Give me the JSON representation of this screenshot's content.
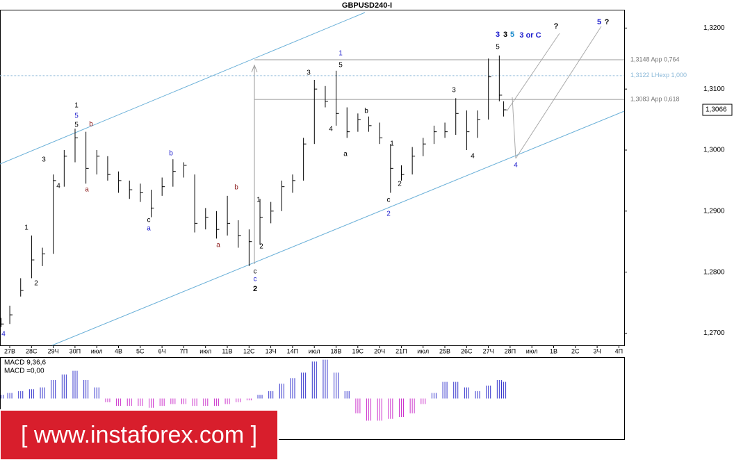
{
  "chart_data": {
    "type": "ohlc",
    "title": "GBPUSD240-I",
    "x_labels": [
      "27В",
      "28С",
      "29Ч",
      "30П",
      "июл",
      "4В",
      "5С",
      "6Ч",
      "7П",
      "июл",
      "11В",
      "12С",
      "13Ч",
      "14П",
      "июл",
      "18В",
      "19С",
      "20Ч",
      "21П",
      "июл",
      "25В",
      "26С",
      "27Ч",
      "28П",
      "июл",
      "1В",
      "2С",
      "3Ч",
      "4П"
    ],
    "xlim": [
      -0.45,
      28.24
    ],
    "x": [
      -0.4,
      0,
      0.5,
      1,
      1.5,
      2,
      2.5,
      3,
      3.5,
      4,
      4.5,
      5,
      5.5,
      6,
      6.5,
      7,
      7.5,
      8,
      8.5,
      9,
      9.5,
      10,
      10.5,
      11,
      11.5,
      12,
      12.5,
      13,
      13.5,
      14,
      14.5,
      15,
      15.5,
      16,
      16.5,
      17,
      17.5,
      18,
      18.5,
      19,
      19.5,
      20,
      20.5,
      21,
      21.5,
      22,
      22.5,
      22.7
    ],
    "high": [
      1.2725,
      1.2745,
      1.279,
      1.286,
      1.284,
      1.296,
      1.3,
      1.3035,
      1.303,
      1.3,
      1.299,
      1.2965,
      1.295,
      1.2945,
      1.2935,
      1.2955,
      1.2985,
      1.298,
      1.296,
      1.2905,
      1.29,
      1.2925,
      1.2885,
      1.287,
      1.292,
      1.2915,
      1.295,
      1.296,
      1.302,
      1.3115,
      1.3105,
      1.313,
      1.307,
      1.306,
      1.3055,
      1.3045,
      1.301,
      1.2975,
      1.3005,
      1.302,
      1.304,
      1.3045,
      1.3085,
      1.3065,
      1.3065,
      1.315,
      1.3155,
      1.308
    ],
    "low": [
      1.271,
      1.2715,
      1.276,
      1.279,
      1.281,
      1.283,
      1.294,
      1.298,
      1.2945,
      1.296,
      1.295,
      1.293,
      1.292,
      1.2915,
      1.289,
      1.2925,
      1.294,
      1.2955,
      1.2865,
      1.287,
      1.2855,
      1.286,
      1.284,
      1.281,
      1.2845,
      1.288,
      1.29,
      1.293,
      1.295,
      1.301,
      1.307,
      1.304,
      1.302,
      1.303,
      1.303,
      1.301,
      1.293,
      1.295,
      1.296,
      1.299,
      1.301,
      1.302,
      1.3025,
      1.3,
      1.302,
      1.305,
      1.308,
      1.3055
    ],
    "close": [
      1.2715,
      1.273,
      1.277,
      1.282,
      1.283,
      1.295,
      1.299,
      1.302,
      1.297,
      1.299,
      1.296,
      1.295,
      1.2935,
      1.293,
      1.2905,
      1.294,
      1.2965,
      1.2975,
      1.288,
      1.289,
      1.287,
      1.288,
      1.286,
      1.285,
      1.289,
      1.29,
      1.294,
      1.295,
      1.301,
      1.31,
      1.308,
      1.306,
      1.303,
      1.305,
      1.304,
      1.302,
      1.297,
      1.296,
      1.299,
      1.301,
      1.303,
      1.303,
      1.306,
      1.303,
      1.305,
      1.312,
      1.309,
      1.3066
    ],
    "color": "#000000",
    "ylim": [
      1.268,
      1.323
    ],
    "yticks": [
      {
        "value": 1.27,
        "label": "1,2700"
      },
      {
        "value": 1.28,
        "label": "1,2800"
      },
      {
        "value": 1.29,
        "label": "1,2900"
      },
      {
        "value": 1.3,
        "label": "1,3000"
      },
      {
        "value": 1.31,
        "label": "1,3100"
      },
      {
        "value": 1.32,
        "label": "1,3200"
      }
    ],
    "levels": [
      {
        "value": 1.3148,
        "label": "1,3148 App 0,764"
      },
      {
        "value": 1.3122,
        "label": "1,3122 LHexp 1,000"
      },
      {
        "value": 1.3083,
        "label": "1,3083 App 0,618"
      }
    ],
    "current_price": {
      "value": 1.3066,
      "label": "1,3066"
    },
    "annotations": [
      {
        "text": "1",
        "color": "#000"
      },
      {
        "text": "2",
        "color": "#000"
      },
      {
        "text": "3",
        "color": "#000"
      },
      {
        "text": "4",
        "color": "#000"
      },
      {
        "text": "1",
        "color": "#000"
      },
      {
        "text": "5",
        "color": "#1a1acc"
      },
      {
        "text": "5",
        "color": "#000"
      },
      {
        "text": "b",
        "color": "#8b1a1a"
      },
      {
        "text": "a",
        "color": "#8b1a1a"
      },
      {
        "text": "b",
        "color": "#1a1acc"
      },
      {
        "text": "c",
        "color": "#000"
      },
      {
        "text": "a",
        "color": "#1a1acc"
      },
      {
        "text": "a",
        "color": "#8b1a1a"
      },
      {
        "text": "b",
        "color": "#8b1a1a"
      },
      {
        "text": "1",
        "color": "#000"
      },
      {
        "text": "2",
        "color": "#000"
      },
      {
        "text": "c",
        "color": "#000"
      },
      {
        "text": "c",
        "color": "#1a1acc"
      },
      {
        "text": "2",
        "color": "#000"
      },
      {
        "text": "3",
        "color": "#000"
      },
      {
        "text": "1",
        "color": "#1a1acc"
      },
      {
        "text": "5",
        "color": "#000"
      },
      {
        "text": "4",
        "color": "#000"
      },
      {
        "text": "a",
        "color": "#000"
      },
      {
        "text": "b",
        "color": "#000"
      },
      {
        "text": "1",
        "color": "#000"
      },
      {
        "text": "2",
        "color": "#000"
      },
      {
        "text": "c",
        "color": "#000"
      },
      {
        "text": "2",
        "color": "#1a1acc"
      },
      {
        "text": "3",
        "color": "#000"
      },
      {
        "text": "4",
        "color": "#000"
      },
      {
        "text": "5",
        "color": "#000"
      },
      {
        "text": "3",
        "color": "#1a1acc"
      },
      {
        "text": "3",
        "color": "#000"
      },
      {
        "text": "5",
        "color": "#1a8acc"
      },
      {
        "text": "3 or C",
        "color": "#1a1acc"
      },
      {
        "text": "?",
        "color": "#000"
      },
      {
        "text": "5",
        "color": "#1a1acc"
      },
      {
        "text": "?",
        "color": "#000"
      },
      {
        "text": "4",
        "color": "#1a1acc"
      },
      {
        "text": "4",
        "color": "#1a1acc"
      }
    ],
    "macd": {
      "labels": [
        "MACD 9,36,6",
        "MACD =0,00"
      ],
      "ylim": [
        -0.0022,
        0.0022
      ],
      "positive_color": "#3333cc",
      "negative_color": "#cc33cc",
      "values": [
        0.0002,
        0.0003,
        0.0004,
        0.0005,
        0.0006,
        0.001,
        0.0013,
        0.0015,
        0.001,
        0.0006,
        -0.0002,
        -0.0004,
        -0.0004,
        -0.0004,
        -0.0005,
        -0.0004,
        -0.0003,
        -0.0003,
        -0.0004,
        -0.0004,
        -0.0004,
        -0.0003,
        -0.0002,
        -0.0001,
        0.0002,
        0.0004,
        0.0008,
        0.0011,
        0.0014,
        0.002,
        0.0021,
        0.0014,
        0.0004,
        -0.0008,
        -0.0012,
        -0.0012,
        -0.0011,
        -0.001,
        -0.0008,
        -0.0003,
        0.0003,
        0.0009,
        0.0009,
        0.0006,
        0.0004,
        0.0007,
        0.001,
        0.0009
      ]
    },
    "watermark": "[ www.instaforex.com ]"
  }
}
